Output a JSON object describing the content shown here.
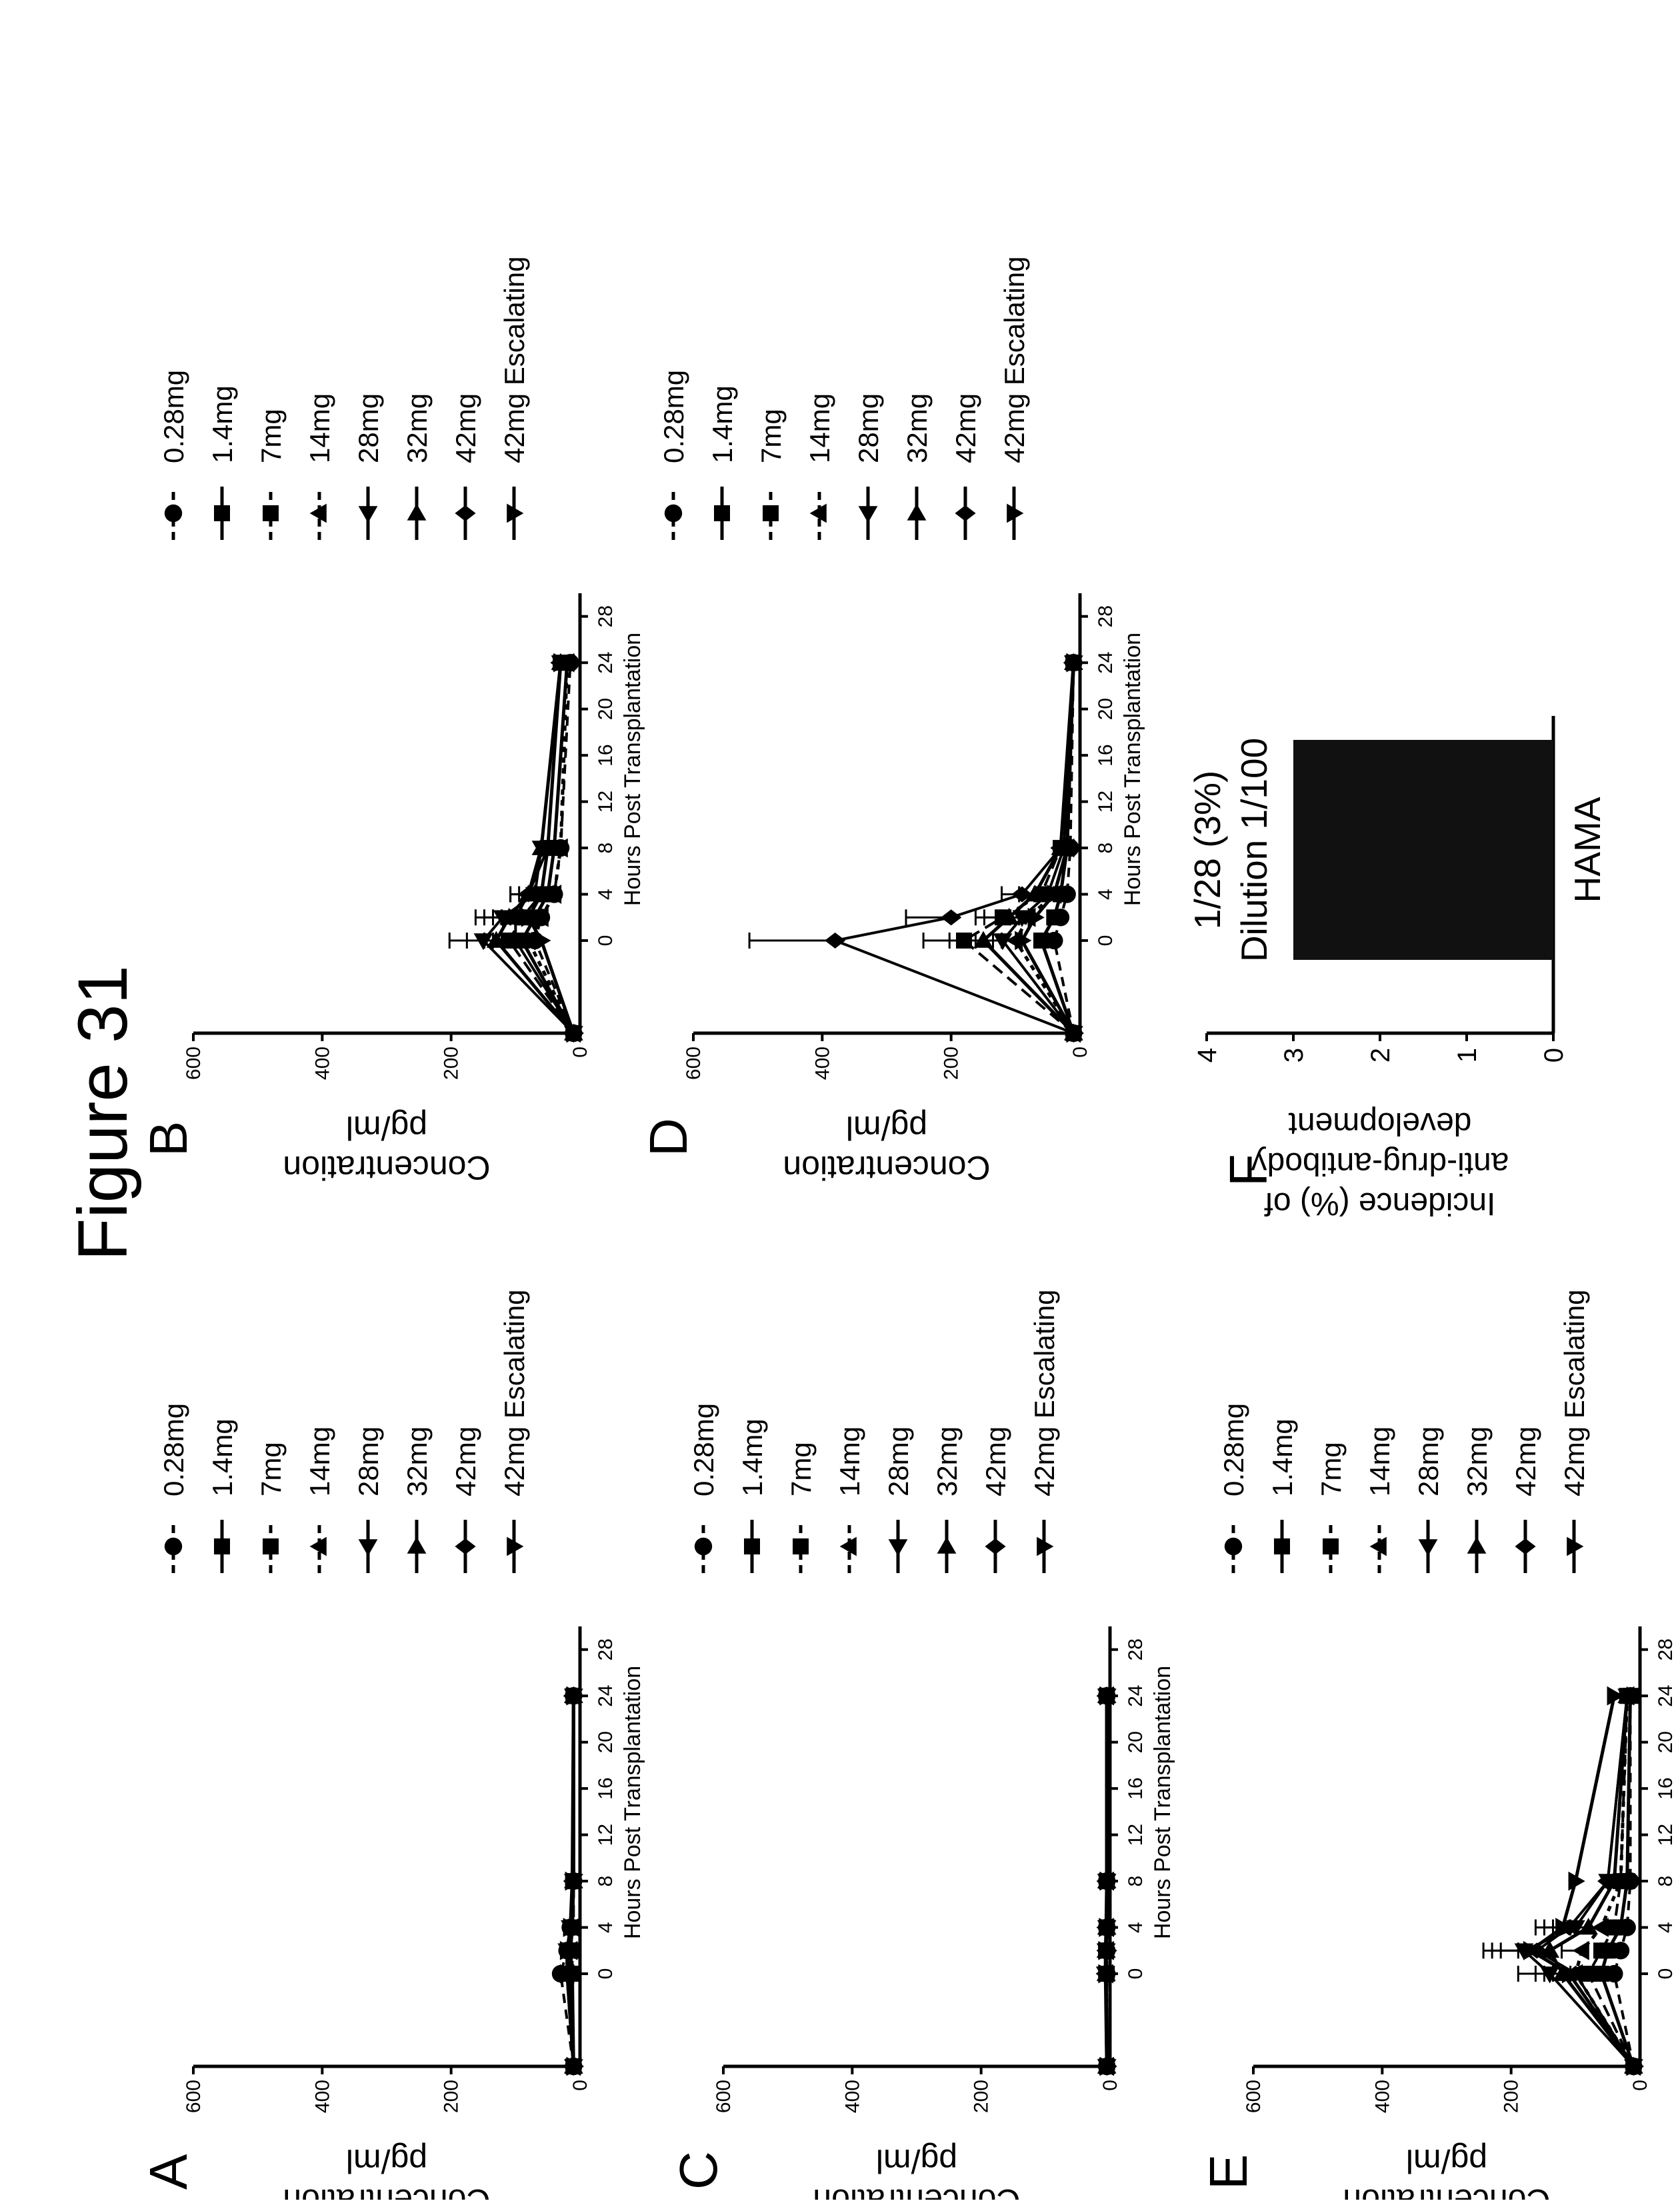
{
  "figure": {
    "title": "Figure 31"
  },
  "colors": {
    "ink": "#000000",
    "bar_fill": "#111111",
    "background": "#ffffff"
  },
  "legend_labels": [
    "0.28mg",
    "1.4mg",
    "7mg",
    "14mg",
    "28mg",
    "32mg",
    "42mg",
    "42mg Escalating"
  ],
  "chart_data": [
    {
      "panel": "A",
      "type": "line",
      "ylabel": "Concentration pg/ml",
      "xlabel": "Hours Post Transplantation",
      "xlim": [
        -8,
        30
      ],
      "ylim": [
        0,
        600
      ],
      "x_ticks": [
        "0",
        "4",
        "8",
        "12",
        "16",
        "20",
        "24",
        "28"
      ],
      "y_ticks": [
        "0",
        "200",
        "400",
        "600"
      ],
      "legend_position": "right",
      "series": [
        {
          "name": "0.28mg",
          "x": [
            -8,
            0,
            2,
            4,
            8,
            24
          ],
          "y": [
            10,
            30,
            20,
            15,
            10,
            10
          ]
        },
        {
          "name": "1.4mg",
          "x": [
            -8,
            0,
            2,
            4,
            8,
            24
          ],
          "y": [
            10,
            15,
            15,
            12,
            10,
            10
          ]
        },
        {
          "name": "7mg",
          "x": [
            -8,
            0,
            2,
            4,
            8,
            24
          ],
          "y": [
            10,
            12,
            12,
            10,
            10,
            10
          ]
        },
        {
          "name": "14mg",
          "x": [
            -8,
            0,
            2,
            4,
            8,
            24
          ],
          "y": [
            10,
            20,
            15,
            12,
            10,
            10
          ]
        },
        {
          "name": "28mg",
          "x": [
            -8,
            0,
            2,
            4,
            8,
            24
          ],
          "y": [
            10,
            15,
            20,
            15,
            10,
            10
          ]
        },
        {
          "name": "32mg",
          "x": [
            -8,
            0,
            2,
            4,
            8,
            24
          ],
          "y": [
            10,
            12,
            15,
            12,
            10,
            10
          ]
        },
        {
          "name": "42mg",
          "x": [
            -8,
            0,
            2,
            4,
            8,
            24
          ],
          "y": [
            10,
            15,
            15,
            12,
            10,
            10
          ]
        },
        {
          "name": "42mg Escalating",
          "x": [
            -8,
            0,
            2,
            4,
            8,
            24
          ],
          "y": [
            10,
            20,
            20,
            15,
            12,
            10
          ]
        }
      ]
    },
    {
      "panel": "B",
      "type": "line",
      "ylabel": "Concentration pg/ml",
      "xlabel": "Hours Post Transplantation",
      "xlim": [
        -8,
        30
      ],
      "ylim": [
        0,
        600
      ],
      "x_ticks": [
        "0",
        "4",
        "8",
        "12",
        "16",
        "20",
        "24",
        "28"
      ],
      "y_ticks": [
        "0",
        "200",
        "400",
        "600"
      ],
      "legend_position": "right",
      "series": [
        {
          "name": "0.28mg",
          "x": [
            -8,
            0,
            2,
            4,
            8,
            24
          ],
          "y": [
            10,
            70,
            60,
            40,
            30,
            15
          ]
        },
        {
          "name": "1.4mg",
          "x": [
            -8,
            0,
            2,
            4,
            8,
            24
          ],
          "y": [
            10,
            90,
            70,
            50,
            40,
            20
          ]
        },
        {
          "name": "7mg",
          "x": [
            -8,
            0,
            2,
            4,
            8,
            24
          ],
          "y": [
            10,
            110,
            90,
            60,
            50,
            30
          ]
        },
        {
          "name": "14mg",
          "x": [
            -8,
            0,
            2,
            4,
            8,
            24
          ],
          "y": [
            10,
            80,
            60,
            40,
            30,
            20
          ]
        },
        {
          "name": "28mg",
          "x": [
            -8,
            0,
            2,
            4,
            8,
            24
          ],
          "y": [
            10,
            150,
            120,
            70,
            60,
            30
          ]
        },
        {
          "name": "32mg",
          "x": [
            -8,
            0,
            2,
            4,
            8,
            24
          ],
          "y": [
            10,
            130,
            110,
            80,
            60,
            30
          ]
        },
        {
          "name": "42mg",
          "x": [
            -8,
            0,
            2,
            4,
            8,
            24
          ],
          "y": [
            10,
            100,
            100,
            80,
            50,
            30
          ]
        },
        {
          "name": "42mg Escalating",
          "x": [
            -8,
            0,
            2,
            4,
            8,
            24
          ],
          "y": [
            10,
            60,
            80,
            60,
            50,
            30
          ]
        }
      ]
    },
    {
      "panel": "C",
      "type": "line",
      "ylabel": "Concentration pg/ml",
      "xlabel": "Hours Post Transplantation",
      "xlim": [
        -8,
        30
      ],
      "ylim": [
        0,
        600
      ],
      "x_ticks": [
        "0",
        "4",
        "8",
        "12",
        "16",
        "20",
        "24",
        "28"
      ],
      "y_ticks": [
        "0",
        "200",
        "400",
        "600"
      ],
      "legend_position": "right",
      "series": [
        {
          "name": "0.28mg",
          "x": [
            -8,
            0,
            2,
            4,
            8,
            24
          ],
          "y": [
            5,
            5,
            5,
            5,
            5,
            5
          ]
        },
        {
          "name": "1.4mg",
          "x": [
            -8,
            0,
            2,
            4,
            8,
            24
          ],
          "y": [
            5,
            6,
            6,
            5,
            5,
            5
          ]
        },
        {
          "name": "7mg",
          "x": [
            -8,
            0,
            2,
            4,
            8,
            24
          ],
          "y": [
            5,
            5,
            6,
            5,
            5,
            5
          ]
        },
        {
          "name": "14mg",
          "x": [
            -8,
            0,
            2,
            4,
            8,
            24
          ],
          "y": [
            5,
            6,
            5,
            5,
            5,
            5
          ]
        },
        {
          "name": "28mg",
          "x": [
            -8,
            0,
            2,
            4,
            8,
            24
          ],
          "y": [
            5,
            7,
            6,
            5,
            5,
            5
          ]
        },
        {
          "name": "32mg",
          "x": [
            -8,
            0,
            2,
            4,
            8,
            24
          ],
          "y": [
            5,
            6,
            6,
            5,
            5,
            5
          ]
        },
        {
          "name": "42mg",
          "x": [
            -8,
            0,
            2,
            4,
            8,
            24
          ],
          "y": [
            5,
            6,
            5,
            5,
            5,
            5
          ]
        },
        {
          "name": "42mg Escalating",
          "x": [
            -8,
            0,
            2,
            4,
            8,
            24
          ],
          "y": [
            5,
            7,
            7,
            6,
            5,
            5
          ]
        }
      ]
    },
    {
      "panel": "D",
      "type": "line",
      "ylabel": "Concentration pg/ml",
      "xlabel": "Hours Post Transplantation",
      "xlim": [
        -8,
        30
      ],
      "ylim": [
        0,
        600
      ],
      "x_ticks": [
        "0",
        "4",
        "8",
        "12",
        "16",
        "20",
        "24",
        "28"
      ],
      "y_ticks": [
        "0",
        "200",
        "400",
        "600"
      ],
      "legend_position": "right",
      "series": [
        {
          "name": "0.28mg",
          "x": [
            -8,
            0,
            2,
            4,
            8,
            24
          ],
          "y": [
            10,
            40,
            30,
            20,
            15,
            10
          ]
        },
        {
          "name": "1.4mg",
          "x": [
            -8,
            0,
            2,
            4,
            8,
            24
          ],
          "y": [
            10,
            60,
            40,
            30,
            20,
            10
          ]
        },
        {
          "name": "7mg",
          "x": [
            -8,
            0,
            2,
            4,
            8,
            24
          ],
          "y": [
            10,
            180,
            120,
            60,
            30,
            10
          ]
        },
        {
          "name": "14mg",
          "x": [
            -8,
            0,
            2,
            4,
            8,
            24
          ],
          "y": [
            10,
            100,
            80,
            40,
            20,
            10
          ]
        },
        {
          "name": "28mg",
          "x": [
            -8,
            0,
            2,
            4,
            8,
            24
          ],
          "y": [
            10,
            120,
            90,
            50,
            25,
            10
          ]
        },
        {
          "name": "32mg",
          "x": [
            -8,
            0,
            2,
            4,
            8,
            24
          ],
          "y": [
            10,
            150,
            110,
            70,
            30,
            10
          ]
        },
        {
          "name": "42mg",
          "x": [
            -8,
            0,
            2,
            4,
            8,
            24
          ],
          "y": [
            10,
            380,
            200,
            90,
            30,
            10
          ]
        },
        {
          "name": "42mg Escalating",
          "x": [
            -8,
            0,
            2,
            4,
            8,
            24
          ],
          "y": [
            10,
            90,
            70,
            40,
            20,
            10
          ]
        }
      ]
    },
    {
      "panel": "E",
      "type": "line",
      "ylabel": "Concentration pg/ml",
      "xlabel": "Hours Post Transplantation",
      "xlim": [
        -8,
        30
      ],
      "ylim": [
        0,
        600
      ],
      "x_ticks": [
        "0",
        "4",
        "8",
        "12",
        "16",
        "20",
        "24",
        "28"
      ],
      "y_ticks": [
        "0",
        "200",
        "400",
        "600"
      ],
      "legend_position": "right",
      "series": [
        {
          "name": "0.28mg",
          "x": [
            -8,
            0,
            2,
            4,
            8,
            24
          ],
          "y": [
            10,
            40,
            30,
            20,
            15,
            15
          ]
        },
        {
          "name": "1.4mg",
          "x": [
            -8,
            0,
            2,
            4,
            8,
            24
          ],
          "y": [
            10,
            60,
            50,
            30,
            20,
            15
          ]
        },
        {
          "name": "7mg",
          "x": [
            -8,
            0,
            2,
            4,
            8,
            24
          ],
          "y": [
            10,
            80,
            60,
            40,
            30,
            20
          ]
        },
        {
          "name": "14mg",
          "x": [
            -8,
            0,
            2,
            4,
            8,
            24
          ],
          "y": [
            10,
            100,
            90,
            60,
            30,
            20
          ]
        },
        {
          "name": "28mg",
          "x": [
            -8,
            0,
            2,
            4,
            8,
            24
          ],
          "y": [
            10,
            140,
            180,
            100,
            50,
            20
          ]
        },
        {
          "name": "32mg",
          "x": [
            -8,
            0,
            2,
            4,
            8,
            24
          ],
          "y": [
            10,
            120,
            140,
            80,
            40,
            20
          ]
        },
        {
          "name": "42mg",
          "x": [
            -8,
            0,
            2,
            4,
            8,
            24
          ],
          "y": [
            10,
            100,
            160,
            110,
            50,
            20
          ]
        },
        {
          "name": "42mg Escalating",
          "x": [
            -8,
            0,
            2,
            4,
            8,
            24
          ],
          "y": [
            10,
            110,
            170,
            120,
            100,
            40
          ]
        }
      ]
    },
    {
      "panel": "F",
      "type": "bar",
      "ylabel": "Incidence (%) of anti-drug-antibody development",
      "categories": [
        "HAMA"
      ],
      "values": [
        3
      ],
      "ylim": [
        0,
        4
      ],
      "y_ticks": [
        "0",
        "1",
        "2",
        "3",
        "4"
      ],
      "annotations": [
        "1/28 (3%)",
        "Dilution 1/100"
      ]
    }
  ]
}
